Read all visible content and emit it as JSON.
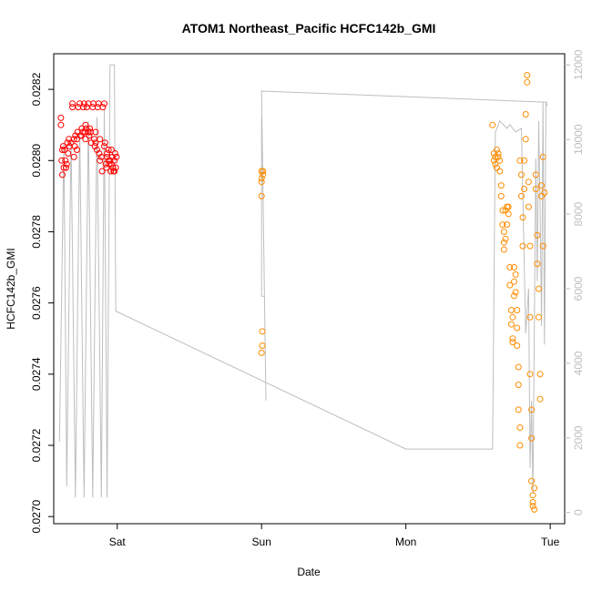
{
  "chart_data": {
    "type": "scatter",
    "title": "ATOM1 Northeast_Pacific HCFC142b_GMI",
    "xlabel": "Date",
    "ylabel": "HCFC142b_GMI",
    "x_ticks": [
      "Sat",
      "Sun",
      "Mon",
      "Tue"
    ],
    "xlim": [
      -0.44,
      3.1
    ],
    "ylim": [
      0.02698,
      0.0283
    ],
    "y_ticks": [
      "0.0270",
      "0.0272",
      "0.0274",
      "0.0276",
      "0.0278",
      "0.0280",
      "0.0282"
    ],
    "y2lim": [
      -300,
      12300
    ],
    "y2_ticks": [
      "0",
      "2000",
      "4000",
      "6000",
      "8000",
      "10000",
      "12000"
    ],
    "grid": false,
    "colors": {
      "series1": "#ff0000",
      "series2": "#ff8c00",
      "line": "#bebebe"
    },
    "series": [
      {
        "color": "#ff0000",
        "marker": "open-circle",
        "points": [
          [
            -0.39,
            0.02812
          ],
          [
            -0.39,
            0.0281
          ],
          [
            -0.385,
            0.028
          ],
          [
            -0.38,
            0.02803
          ],
          [
            -0.38,
            0.02796
          ],
          [
            -0.375,
            0.02804
          ],
          [
            -0.37,
            0.02798
          ],
          [
            -0.365,
            0.02803
          ],
          [
            -0.36,
            0.028
          ],
          [
            -0.355,
            0.02798
          ],
          [
            -0.35,
            0.02799
          ],
          [
            -0.345,
            0.02805
          ],
          [
            -0.34,
            0.02802
          ],
          [
            -0.335,
            0.02806
          ],
          [
            -0.33,
            0.02804
          ],
          [
            -0.32,
            0.02805
          ],
          [
            -0.31,
            0.02815
          ],
          [
            -0.31,
            0.02816
          ],
          [
            -0.3,
            0.02806
          ],
          [
            -0.295,
            0.02804
          ],
          [
            -0.29,
            0.02807
          ],
          [
            -0.28,
            0.02806
          ],
          [
            -0.275,
            0.02808
          ],
          [
            -0.27,
            0.02815
          ],
          [
            -0.26,
            0.02816
          ],
          [
            -0.255,
            0.02807
          ],
          [
            -0.25,
            0.02807
          ],
          [
            -0.245,
            0.02809
          ],
          [
            -0.24,
            0.02808
          ],
          [
            -0.235,
            0.02815
          ],
          [
            -0.23,
            0.02816
          ],
          [
            -0.225,
            0.02808
          ],
          [
            -0.22,
            0.0281
          ],
          [
            -0.215,
            0.02809
          ],
          [
            -0.21,
            0.02815
          ],
          [
            -0.2,
            0.02816
          ],
          [
            -0.195,
            0.02807
          ],
          [
            -0.19,
            0.02809
          ],
          [
            -0.185,
            0.02808
          ],
          [
            -0.18,
            0.02805
          ],
          [
            -0.17,
            0.02815
          ],
          [
            -0.165,
            0.02816
          ],
          [
            -0.16,
            0.02806
          ],
          [
            -0.155,
            0.02804
          ],
          [
            -0.15,
            0.02805
          ],
          [
            -0.14,
            0.02803
          ],
          [
            -0.135,
            0.02815
          ],
          [
            -0.13,
            0.02816
          ],
          [
            -0.125,
            0.02802
          ],
          [
            -0.12,
            0.028
          ],
          [
            -0.11,
            0.02801
          ],
          [
            -0.105,
            0.02797
          ],
          [
            -0.1,
            0.02815
          ],
          [
            -0.09,
            0.02816
          ],
          [
            -0.085,
            0.02805
          ],
          [
            -0.08,
            0.02799
          ],
          [
            -0.075,
            0.02798
          ],
          [
            -0.07,
            0.02801
          ],
          [
            -0.06,
            0.02803
          ],
          [
            -0.055,
            0.02799
          ],
          [
            -0.05,
            0.028
          ],
          [
            -0.045,
            0.02797
          ],
          [
            -0.04,
            0.02803
          ],
          [
            -0.035,
            0.02801
          ],
          [
            -0.03,
            0.02798
          ],
          [
            -0.025,
            0.02797
          ],
          [
            -0.02,
            0.028
          ],
          [
            -0.015,
            0.02802
          ],
          [
            -0.01,
            0.02798
          ],
          [
            -0.005,
            0.02801
          ],
          [
            -0.3,
            0.02801
          ],
          [
            -0.28,
            0.02803
          ],
          [
            -0.22,
            0.02806
          ],
          [
            -0.2,
            0.02808
          ],
          [
            -0.15,
            0.02808
          ],
          [
            -0.12,
            0.02806
          ],
          [
            -0.09,
            0.02804
          ],
          [
            -0.07,
            0.02802
          ],
          [
            -0.06,
            0.028
          ],
          [
            -0.04,
            0.02799
          ],
          [
            -0.02,
            0.02797
          ]
        ]
      },
      {
        "color": "#ff8c00",
        "marker": "open-circle",
        "points": [
          [
            1.0,
            0.02797
          ],
          [
            1.0,
            0.02795
          ],
          [
            1.0,
            0.02794
          ],
          [
            1.01,
            0.02797
          ],
          [
            1.01,
            0.02796
          ],
          [
            1.0,
            0.0279
          ],
          [
            1.005,
            0.02752
          ],
          [
            1.005,
            0.02748
          ],
          [
            1.0,
            0.02746
          ],
          [
            2.6,
            0.0281
          ],
          [
            2.61,
            0.02802
          ],
          [
            2.61,
            0.028
          ],
          [
            2.62,
            0.02801
          ],
          [
            2.62,
            0.02799
          ],
          [
            2.63,
            0.02803
          ],
          [
            2.63,
            0.02798
          ],
          [
            2.64,
            0.02801
          ],
          [
            2.64,
            0.02802
          ],
          [
            2.65,
            0.028
          ],
          [
            2.65,
            0.02797
          ],
          [
            2.66,
            0.0279
          ],
          [
            2.66,
            0.02793
          ],
          [
            2.67,
            0.02786
          ],
          [
            2.67,
            0.02782
          ],
          [
            2.68,
            0.0278
          ],
          [
            2.68,
            0.02777
          ],
          [
            2.68,
            0.02775
          ],
          [
            2.69,
            0.02778
          ],
          [
            2.69,
            0.02786
          ],
          [
            2.7,
            0.02787
          ],
          [
            2.7,
            0.02782
          ],
          [
            2.71,
            0.02785
          ],
          [
            2.71,
            0.02787
          ],
          [
            2.72,
            0.0277
          ],
          [
            2.72,
            0.02765
          ],
          [
            2.73,
            0.02758
          ],
          [
            2.73,
            0.02754
          ],
          [
            2.74,
            0.0275
          ],
          [
            2.74,
            0.02749
          ],
          [
            2.74,
            0.02756
          ],
          [
            2.75,
            0.02762
          ],
          [
            2.75,
            0.02766
          ],
          [
            2.75,
            0.0277
          ],
          [
            2.76,
            0.02768
          ],
          [
            2.76,
            0.02763
          ],
          [
            2.77,
            0.02758
          ],
          [
            2.77,
            0.02753
          ],
          [
            2.77,
            0.02748
          ],
          [
            2.78,
            0.02742
          ],
          [
            2.78,
            0.02737
          ],
          [
            2.78,
            0.0273
          ],
          [
            2.79,
            0.02725
          ],
          [
            2.79,
            0.0272
          ],
          [
            2.79,
            0.028
          ],
          [
            2.8,
            0.02796
          ],
          [
            2.8,
            0.0279
          ],
          [
            2.81,
            0.02784
          ],
          [
            2.81,
            0.02776
          ],
          [
            2.82,
            0.02792
          ],
          [
            2.82,
            0.028
          ],
          [
            2.83,
            0.02806
          ],
          [
            2.83,
            0.02813
          ],
          [
            2.84,
            0.02824
          ],
          [
            2.84,
            0.02822
          ],
          [
            2.85,
            0.02794
          ],
          [
            2.85,
            0.02787
          ],
          [
            2.86,
            0.02776
          ],
          [
            2.86,
            0.02756
          ],
          [
            2.86,
            0.0274
          ],
          [
            2.87,
            0.0273
          ],
          [
            2.87,
            0.02722
          ],
          [
            2.87,
            0.0271
          ],
          [
            2.88,
            0.02706
          ],
          [
            2.88,
            0.02704
          ],
          [
            2.88,
            0.02703
          ],
          [
            2.89,
            0.02702
          ],
          [
            2.89,
            0.02708
          ],
          [
            2.9,
            0.02796
          ],
          [
            2.9,
            0.02792
          ],
          [
            2.91,
            0.02779
          ],
          [
            2.91,
            0.02771
          ],
          [
            2.92,
            0.02764
          ],
          [
            2.92,
            0.02756
          ],
          [
            2.93,
            0.0274
          ],
          [
            2.93,
            0.02733
          ],
          [
            2.94,
            0.02793
          ],
          [
            2.94,
            0.0279
          ],
          [
            2.95,
            0.02801
          ],
          [
            2.95,
            0.02776
          ],
          [
            2.96,
            0.02791
          ]
        ]
      }
    ],
    "line": {
      "color": "#bebebe",
      "axis": "right",
      "points": [
        [
          -0.4,
          1900
        ],
        [
          -0.37,
          9900
        ],
        [
          -0.35,
          700
        ],
        [
          -0.32,
          10100
        ],
        [
          -0.29,
          400
        ],
        [
          -0.26,
          10300
        ],
        [
          -0.23,
          400
        ],
        [
          -0.2,
          10500
        ],
        [
          -0.17,
          400
        ],
        [
          -0.14,
          10600
        ],
        [
          -0.11,
          400
        ],
        [
          -0.09,
          10800
        ],
        [
          -0.07,
          400
        ],
        [
          -0.05,
          12000
        ],
        [
          -0.02,
          12000
        ],
        [
          -0.01,
          5400
        ],
        [
          2.0,
          1700
        ],
        [
          2.6,
          1700
        ],
        [
          2.62,
          10200
        ],
        [
          2.65,
          10500
        ],
        [
          2.7,
          10300
        ],
        [
          2.72,
          10400
        ],
        [
          2.76,
          10200
        ],
        [
          2.8,
          10300
        ],
        [
          2.83,
          4800
        ],
        [
          2.85,
          6000
        ],
        [
          2.86,
          1200
        ],
        [
          2.87,
          3000
        ],
        [
          2.88,
          500
        ],
        [
          2.9,
          9500
        ],
        [
          2.91,
          6200
        ],
        [
          2.92,
          10500
        ],
        [
          2.93,
          8000
        ],
        [
          2.94,
          5000
        ],
        [
          2.95,
          11000
        ],
        [
          2.96,
          4500
        ],
        [
          2.97,
          11000
        ],
        [
          2.98,
          10900
        ]
      ],
      "extra_segments": [
        [
          [
            1.0,
            10600
          ],
          [
            1.0,
            5800
          ],
          [
            1.02,
            5800
          ],
          [
            1.03,
            3000
          ],
          [
            1.0,
            11300
          ],
          [
            2.98,
            11000
          ]
        ]
      ]
    }
  }
}
